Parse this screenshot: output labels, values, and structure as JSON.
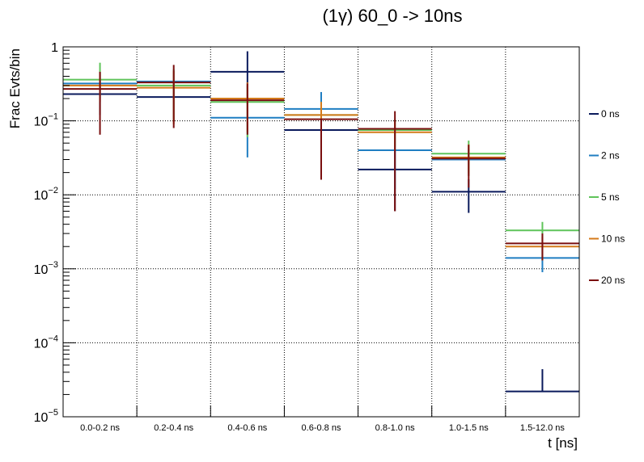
{
  "chart_data": {
    "type": "step-histogram-errorbars",
    "title": "(1γ) 60_0 -> 10ns",
    "xlabel": "t [ns]",
    "ylabel": "Frac Evts/bin",
    "yscale": "log",
    "ylim": [
      1e-05,
      1
    ],
    "grid": true,
    "legend_position": "right",
    "categories": [
      "0.0-0.2 ns",
      "0.2-0.4 ns",
      "0.4-0.6 ns",
      "0.6-0.8 ns",
      "0.8-1.0 ns",
      "1.0-1.5 ns",
      "1.5-12.0 ns"
    ],
    "y_ticks": [
      {
        "value": 1,
        "base": "1",
        "exp": ""
      },
      {
        "value": 0.1,
        "base": "10",
        "exp": "−1"
      },
      {
        "value": 0.01,
        "base": "10",
        "exp": "−2"
      },
      {
        "value": 0.001,
        "base": "10",
        "exp": "−3"
      },
      {
        "value": 0.0001,
        "base": "10",
        "exp": "−4"
      },
      {
        "value": 1e-05,
        "base": "10",
        "exp": "−5"
      }
    ],
    "series": [
      {
        "name": "0 ns",
        "color": "#0a1a5c",
        "values": [
          0.23,
          0.21,
          0.46,
          0.075,
          0.022,
          0.011,
          2.2e-05
        ],
        "err_low": [
          0.11,
          0.11,
          0.29,
          0.059,
          0.016,
          0.0053,
          0.0
        ],
        "err_high": [
          0.12,
          0.13,
          0.41,
          0.025,
          0.017,
          0.0052,
          2.2e-05
        ]
      },
      {
        "name": "2 ns",
        "color": "#1f7ec2",
        "values": [
          0.32,
          0.34,
          0.11,
          0.145,
          0.04,
          0.03,
          0.0014
        ],
        "err_low": [
          0.12,
          0.13,
          0.078,
          0.065,
          0.028,
          0.012,
          0.0005
        ],
        "err_high": [
          0.14,
          0.14,
          0.09,
          0.1,
          0.03,
          0.012,
          0.0005
        ]
      },
      {
        "name": "5 ns",
        "color": "#5fc45a",
        "values": [
          0.36,
          0.3,
          0.18,
          0.12,
          0.075,
          0.036,
          0.0033
        ],
        "err_low": [
          0.14,
          0.2,
          0.12,
          0.06,
          0.03,
          0.016,
          0.001
        ],
        "err_high": [
          0.25,
          0.2,
          0.12,
          0.06,
          0.03,
          0.018,
          0.001
        ]
      },
      {
        "name": "10 ns",
        "color": "#d47a1a",
        "values": [
          0.3,
          0.28,
          0.2,
          0.12,
          0.07,
          0.032,
          0.002
        ],
        "err_low": [
          0.12,
          0.19,
          0.13,
          0.06,
          0.03,
          0.014,
          0.0007
        ],
        "err_high": [
          0.15,
          0.19,
          0.13,
          0.06,
          0.03,
          0.016,
          0.0007
        ]
      },
      {
        "name": "20 ns",
        "color": "#7a0f0f",
        "values": [
          0.27,
          0.33,
          0.19,
          0.105,
          0.078,
          0.031,
          0.0022
        ],
        "err_low": [
          0.205,
          0.25,
          0.125,
          0.089,
          0.072,
          0.0185,
          0.0009
        ],
        "err_high": [
          0.19,
          0.24,
          0.13,
          0.0,
          0.057,
          0.0165,
          0.0008
        ]
      }
    ]
  }
}
